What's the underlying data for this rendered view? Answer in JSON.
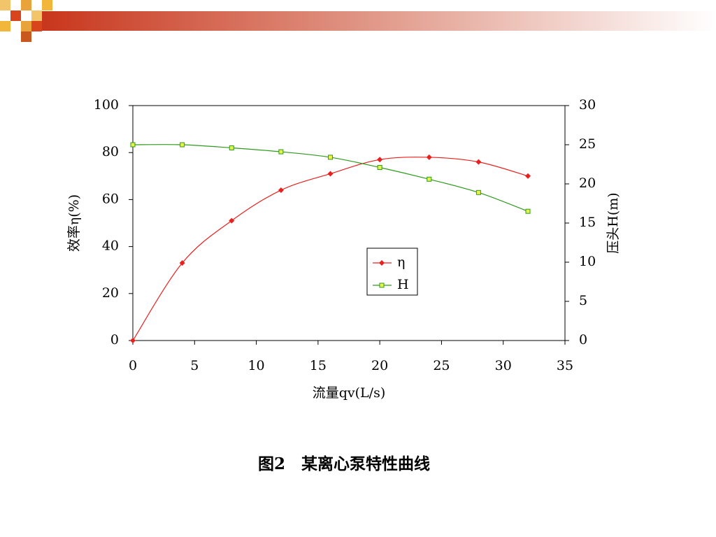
{
  "chart_data": {
    "type": "line",
    "caption": "图2　某离心泵特性曲线",
    "x_label": "流量qv(L/s)",
    "y_label": "效率η(%)",
    "y2_label": "压头H(m)",
    "x": [
      0,
      4,
      8,
      12,
      16,
      20,
      24,
      28,
      32
    ],
    "series": [
      {
        "name": "η",
        "color": "#e8211f",
        "values": [
          0,
          33,
          51,
          64,
          71,
          77,
          78,
          76,
          70
        ]
      },
      {
        "name": "H",
        "color": "#2e9a1d",
        "axis": "y2",
        "values": [
          25,
          25,
          24.6,
          24.1,
          23.4,
          22.1,
          20.6,
          18.9,
          16.5
        ]
      }
    ],
    "xlim": [
      0,
      35
    ],
    "xticks": [
      0,
      5,
      10,
      15,
      20,
      25,
      30,
      35
    ],
    "ylim": [
      0,
      100
    ],
    "yticks": [
      0,
      20,
      40,
      60,
      80,
      100
    ],
    "y2lim": [
      0,
      30
    ],
    "y2ticks": [
      0,
      5,
      10,
      15,
      20,
      25,
      30
    ],
    "legend": "center"
  }
}
